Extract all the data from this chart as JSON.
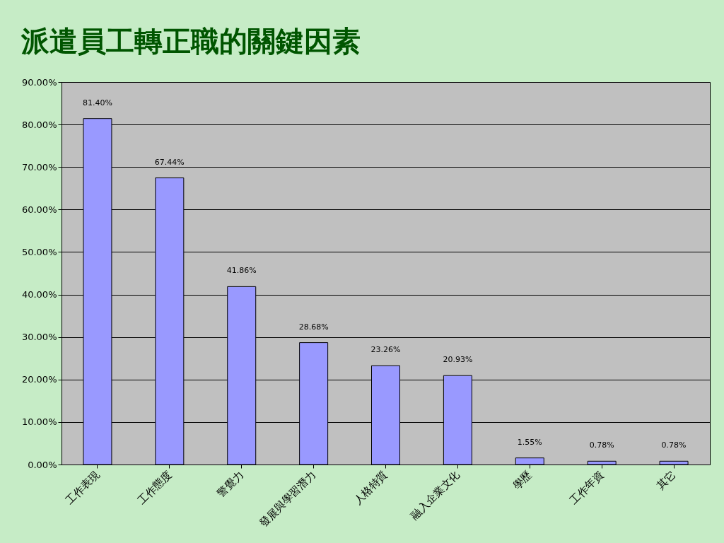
{
  "chart_data": {
    "type": "bar",
    "title": "派遣員工轉正職的關鍵因素",
    "categories": [
      "工作表現",
      "工作態度",
      "警覺力",
      "發展與學習潛力",
      "人格特質",
      "融入企業文化",
      "學歷",
      "工作年資",
      "其它"
    ],
    "values": [
      81.4,
      67.44,
      41.86,
      28.68,
      23.26,
      20.93,
      1.55,
      0.78,
      0.78
    ],
    "value_labels": [
      "81.40%",
      "67.44%",
      "41.86%",
      "28.68%",
      "23.26%",
      "20.93%",
      "1.55%",
      "0.78%",
      "0.78%"
    ],
    "color": "#9999ff",
    "ylim": [
      0,
      90
    ],
    "yticks": [
      {
        "value": 0,
        "label": "0.00%"
      },
      {
        "value": 10,
        "label": "10.00%"
      },
      {
        "value": 20,
        "label": "20.00%"
      },
      {
        "value": 30,
        "label": "30.00%"
      },
      {
        "value": 40,
        "label": "40.00%"
      },
      {
        "value": 50,
        "label": "50.00%"
      },
      {
        "value": 60,
        "label": "60.00%"
      },
      {
        "value": 70,
        "label": "70.00%"
      },
      {
        "value": 80,
        "label": "80.00%"
      },
      {
        "value": 90,
        "label": "90.00%"
      }
    ],
    "grid": "y"
  }
}
